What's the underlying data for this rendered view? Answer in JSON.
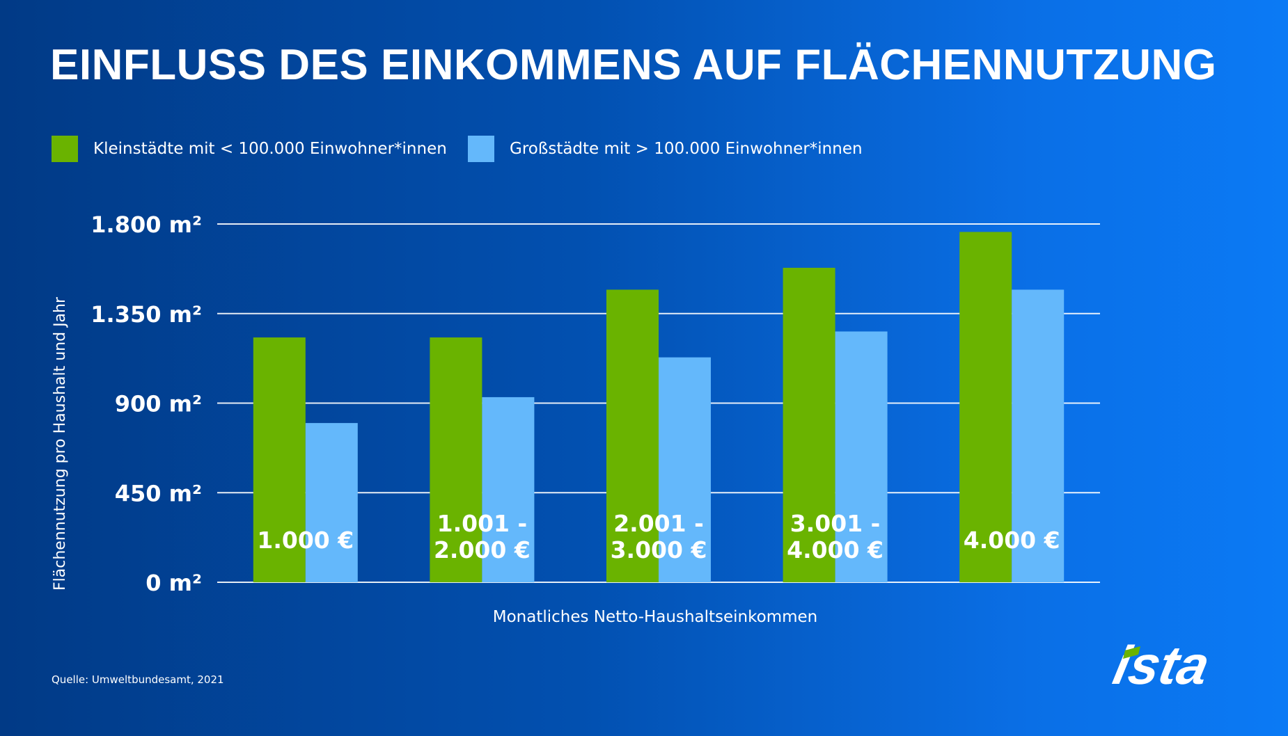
{
  "title": "EINFLUSS DES EINKOMMENS AUF FLÄCHENNUTZUNG",
  "legend": [
    {
      "label": "Kleinstädte mit < 100.000 Einwohner*innen",
      "color": "#6ab300"
    },
    {
      "label": "Großstädte mit > 100.000 Einwohner*innen",
      "color": "#64b8fb"
    }
  ],
  "source": "Quelle: Umweltbundesamt, 2021",
  "logo_text": "ista",
  "chart_data": {
    "type": "bar",
    "categories": [
      [
        "1.000 €"
      ],
      [
        "1.001 -",
        "2.000 €"
      ],
      [
        "2.001 -",
        "3.000 €"
      ],
      [
        "3.001 -",
        "4.000 €"
      ],
      [
        "4.000 €"
      ]
    ],
    "series": [
      {
        "name": "Kleinstädte mit < 100.000 Einwohner*innen",
        "color": "#6ab300",
        "values": [
          1230,
          1230,
          1470,
          1580,
          1760
        ]
      },
      {
        "name": "Großstädte mit > 100.000 Einwohner*innen",
        "color": "#64b8fb",
        "values": [
          800,
          930,
          1130,
          1260,
          1470
        ]
      }
    ],
    "yticks": [
      0,
      450,
      900,
      1350,
      1800
    ],
    "ytick_labels": [
      "0 m²",
      "450 m²",
      "900 m²",
      "1.350 m²",
      "1.800 m²"
    ],
    "ylim": [
      0,
      1800
    ],
    "xlabel": "Monatliches Netto-Haushaltseinkommen",
    "ylabel": "Flächennutzung pro Haushalt und Jahr",
    "grid": true,
    "legend_position": "top-left"
  }
}
